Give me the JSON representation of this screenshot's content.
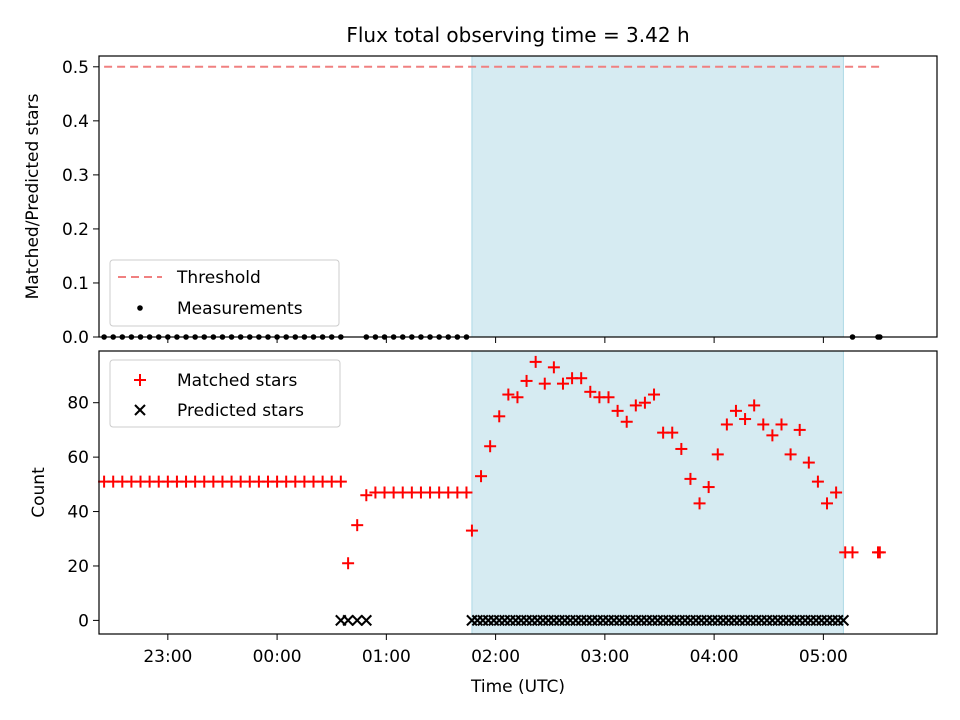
{
  "chart_data": [
    {
      "type": "scatter",
      "title": "Flux total observing time = 3.42 h",
      "xlabel": "",
      "ylabel": "Matched/Predicted stars",
      "ylim": [
        0,
        0.52
      ],
      "yticks": [
        "0.0",
        "0.1",
        "0.2",
        "0.3",
        "0.4",
        "0.5"
      ],
      "xlim_hours": [
        -1.63,
        6.04
      ],
      "legend_position": "lower-left",
      "shaded_interval_utc": [
        "01:47",
        "05:11"
      ],
      "shade_color": "#add8e6",
      "series": [
        {
          "name": "Threshold",
          "style": "dashed-line",
          "color": "#f08080",
          "x": [
            "22:25",
            "05:31"
          ],
          "y": [
            0.5,
            0.5
          ]
        },
        {
          "name": "Measurements",
          "style": "dot",
          "color": "#000000",
          "x": [
            "22:25",
            "22:30",
            "22:35",
            "22:40",
            "22:45",
            "22:50",
            "22:55",
            "23:00",
            "23:05",
            "23:10",
            "23:15",
            "23:20",
            "23:25",
            "23:30",
            "23:35",
            "23:40",
            "23:45",
            "23:50",
            "23:55",
            "00:00",
            "00:05",
            "00:10",
            "00:15",
            "00:20",
            "00:25",
            "00:30",
            "00:35",
            "00:49",
            "00:54",
            "00:59",
            "01:04",
            "01:09",
            "01:14",
            "01:19",
            "01:24",
            "01:29",
            "01:34",
            "01:39",
            "01:44",
            "05:16",
            "05:30",
            "05:31"
          ],
          "y": [
            0,
            0,
            0,
            0,
            0,
            0,
            0,
            0,
            0,
            0,
            0,
            0,
            0,
            0,
            0,
            0,
            0,
            0,
            0,
            0,
            0,
            0,
            0,
            0,
            0,
            0,
            0,
            0,
            0,
            0,
            0,
            0,
            0,
            0,
            0,
            0,
            0,
            0,
            0,
            0,
            0,
            0
          ]
        }
      ]
    },
    {
      "type": "scatter",
      "title": "",
      "xlabel": "Time (UTC)",
      "ylabel": "Count",
      "ylim": [
        -5,
        99
      ],
      "yticks": [
        "0",
        "20",
        "40",
        "60",
        "80"
      ],
      "xticks": [
        "23:00",
        "00:00",
        "01:00",
        "02:00",
        "03:00",
        "04:00",
        "05:00"
      ],
      "xlim_hours": [
        -1.63,
        6.04
      ],
      "legend_position": "upper-left",
      "shaded_interval_utc": [
        "01:47",
        "05:11"
      ],
      "shade_color": "#add8e6",
      "series": [
        {
          "name": "Matched stars",
          "style": "plus",
          "color": "#ff0000",
          "x": [
            "22:25",
            "22:30",
            "22:35",
            "22:40",
            "22:45",
            "22:50",
            "22:55",
            "23:00",
            "23:05",
            "23:10",
            "23:15",
            "23:20",
            "23:25",
            "23:30",
            "23:35",
            "23:40",
            "23:45",
            "23:50",
            "23:55",
            "00:00",
            "00:05",
            "00:10",
            "00:15",
            "00:20",
            "00:25",
            "00:30",
            "00:35",
            "00:39",
            "00:44",
            "00:49",
            "00:54",
            "00:59",
            "01:04",
            "01:09",
            "01:14",
            "01:19",
            "01:24",
            "01:29",
            "01:34",
            "01:39",
            "01:44",
            "01:47",
            "01:52",
            "01:57",
            "02:02",
            "02:07",
            "02:12",
            "02:17",
            "02:22",
            "02:27",
            "02:32",
            "02:37",
            "02:42",
            "02:47",
            "02:52",
            "02:57",
            "03:02",
            "03:07",
            "03:12",
            "03:17",
            "03:22",
            "03:27",
            "03:32",
            "03:37",
            "03:42",
            "03:47",
            "03:52",
            "03:57",
            "04:02",
            "04:07",
            "04:12",
            "04:17",
            "04:22",
            "04:27",
            "04:32",
            "04:37",
            "04:42",
            "04:47",
            "04:52",
            "04:57",
            "05:02",
            "05:07",
            "05:12",
            "05:16",
            "05:30",
            "05:31"
          ],
          "y": [
            51,
            51,
            51,
            51,
            51,
            51,
            51,
            51,
            51,
            51,
            51,
            51,
            51,
            51,
            51,
            51,
            51,
            51,
            51,
            51,
            51,
            51,
            51,
            51,
            51,
            51,
            51,
            21,
            35,
            46,
            47,
            47,
            47,
            47,
            47,
            47,
            47,
            47,
            47,
            47,
            47,
            33,
            53,
            64,
            75,
            83,
            82,
            88,
            95,
            87,
            93,
            87,
            89,
            89,
            84,
            82,
            82,
            77,
            73,
            79,
            80,
            83,
            69,
            69,
            63,
            52,
            43,
            49,
            61,
            72,
            77,
            74,
            79,
            72,
            68,
            72,
            61,
            70,
            58,
            51,
            43,
            47,
            25,
            25,
            25,
            25
          ]
        },
        {
          "name": "Predicted stars",
          "style": "x",
          "color": "#000000",
          "x": [
            "00:35",
            "00:39",
            "00:44",
            "00:49",
            "01:47",
            "01:50",
            "01:53",
            "01:56",
            "01:59",
            "02:02",
            "02:05",
            "02:08",
            "02:11",
            "02:14",
            "02:17",
            "02:20",
            "02:23",
            "02:26",
            "02:29",
            "02:32",
            "02:35",
            "02:38",
            "02:41",
            "02:44",
            "02:47",
            "02:50",
            "02:53",
            "02:56",
            "02:59",
            "03:02",
            "03:05",
            "03:08",
            "03:11",
            "03:14",
            "03:17",
            "03:20",
            "03:23",
            "03:26",
            "03:29",
            "03:32",
            "03:35",
            "03:38",
            "03:41",
            "03:44",
            "03:47",
            "03:50",
            "03:53",
            "03:56",
            "03:59",
            "04:02",
            "04:05",
            "04:08",
            "04:11",
            "04:14",
            "04:17",
            "04:20",
            "04:23",
            "04:26",
            "04:29",
            "04:32",
            "04:35",
            "04:38",
            "04:41",
            "04:44",
            "04:47",
            "04:50",
            "04:53",
            "04:56",
            "04:59",
            "05:02",
            "05:05",
            "05:08",
            "05:11"
          ],
          "y": [
            0,
            0,
            0,
            0,
            0,
            0,
            0,
            0,
            0,
            0,
            0,
            0,
            0,
            0,
            0,
            0,
            0,
            0,
            0,
            0,
            0,
            0,
            0,
            0,
            0,
            0,
            0,
            0,
            0,
            0,
            0,
            0,
            0,
            0,
            0,
            0,
            0,
            0,
            0,
            0,
            0,
            0,
            0,
            0,
            0,
            0,
            0,
            0,
            0,
            0,
            0,
            0,
            0,
            0,
            0,
            0,
            0,
            0,
            0,
            0,
            0,
            0,
            0,
            0,
            0,
            0,
            0,
            0,
            0,
            0,
            0,
            0,
            0
          ]
        }
      ]
    }
  ]
}
